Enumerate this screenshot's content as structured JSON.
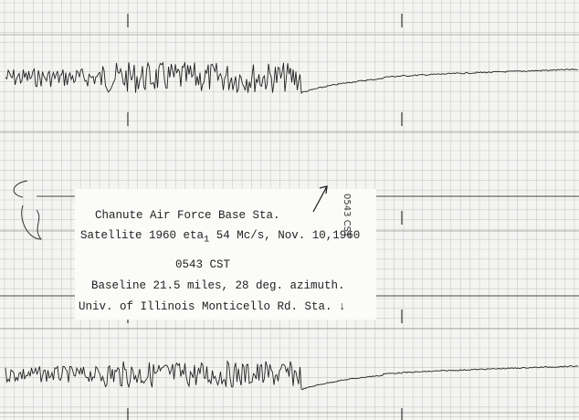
{
  "card": {
    "line1": "Chanute Air Force Base Sta.",
    "line2": {
      "before": "Satellite 1960 eta",
      "subscript": "1",
      "after": " 54 Mc/s, Nov. 10,1960"
    },
    "line3": "0543 CST",
    "line4": "Baseline 21.5 miles, 28 deg. azimuth.",
    "line5": "Univ. of Illinois Monticello Rd. Sta. ↓"
  },
  "annotation": "0543 CST"
}
